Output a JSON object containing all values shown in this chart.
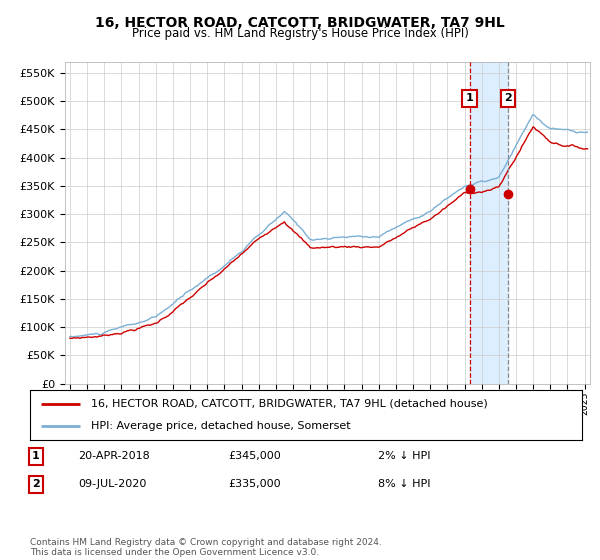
{
  "title": "16, HECTOR ROAD, CATCOTT, BRIDGWATER, TA7 9HL",
  "subtitle": "Price paid vs. HM Land Registry's House Price Index (HPI)",
  "hpi_label": "HPI: Average price, detached house, Somerset",
  "sale_label": "16, HECTOR ROAD, CATCOTT, BRIDGWATER, TA7 9HL (detached house)",
  "footer": "Contains HM Land Registry data © Crown copyright and database right 2024.\nThis data is licensed under the Open Government Licence v3.0.",
  "sale1_date": "20-APR-2018",
  "sale1_price": 345000,
  "sale1_pct": "2% ↓ HPI",
  "sale2_date": "09-JUL-2020",
  "sale2_price": 335000,
  "sale2_pct": "8% ↓ HPI",
  "sale1_x": 2018.3,
  "sale2_x": 2020.52,
  "hpi_color": "#7bafd4",
  "sale_color": "#cc0000",
  "marker_color": "#cc0000",
  "vline1_color": "#cc0000",
  "vline2_color": "#888888",
  "highlight_color": "#ddeeff",
  "ylim": [
    0,
    570000
  ],
  "yticks": [
    0,
    50000,
    100000,
    150000,
    200000,
    250000,
    300000,
    350000,
    400000,
    450000,
    500000,
    550000
  ],
  "xlim_start": 1994.7,
  "xlim_end": 2025.3,
  "background_color": "#ffffff",
  "grid_color": "#cccccc"
}
